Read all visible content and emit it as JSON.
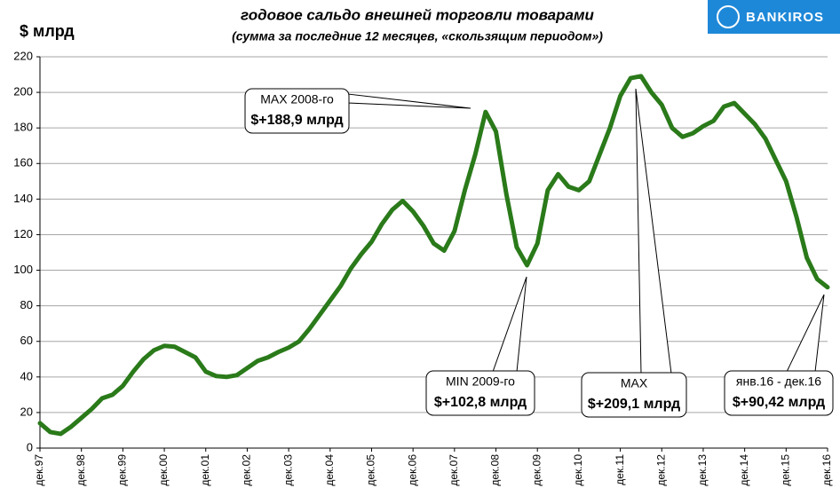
{
  "logo": "BANKIROS",
  "chart_data": {
    "type": "line",
    "title": "годовое сальдо внешней  торговли товарами",
    "subtitle": "(сумма за последние 12 месяцев, «скользящим периодом»)",
    "y_label": "$ млрд",
    "categories": [
      "дек.97",
      null,
      null,
      null,
      "дек.98",
      null,
      null,
      null,
      "дек.99",
      null,
      null,
      null,
      "дек.00",
      null,
      null,
      null,
      "дек.01",
      null,
      null,
      null,
      "дек.02",
      null,
      null,
      null,
      "дек.03",
      null,
      null,
      null,
      "дек.04",
      null,
      null,
      null,
      "дек.05",
      null,
      null,
      null,
      "дек.06",
      null,
      null,
      null,
      "дек.07",
      null,
      null,
      null,
      "дек.08",
      null,
      null,
      null,
      "дек.09",
      null,
      null,
      null,
      "дек.10",
      null,
      null,
      null,
      "дек.11",
      null,
      null,
      null,
      "дек.12",
      null,
      null,
      null,
      "дек.13",
      null,
      null,
      null,
      "дек.14",
      null,
      null,
      null,
      "дек.15",
      null,
      null,
      null,
      "дек.16"
    ],
    "series": [
      {
        "name": "сальдо",
        "color": "#2a7a1a",
        "values": [
          14,
          9,
          8,
          12,
          17,
          22,
          28,
          30,
          35,
          43,
          50,
          55,
          57.5,
          57,
          54,
          51,
          43,
          40.5,
          40,
          41,
          45,
          49,
          51,
          54,
          56.5,
          60,
          67,
          75,
          83,
          91,
          101,
          109,
          116,
          126,
          134,
          139,
          133,
          125,
          115,
          111,
          122,
          145,
          165,
          189,
          178,
          143,
          113,
          102.8,
          115,
          145,
          154,
          147,
          145,
          150,
          165,
          180,
          198,
          208,
          209.1,
          200,
          193,
          180,
          175,
          177,
          181,
          184,
          192,
          194,
          188,
          182,
          174,
          162,
          150,
          130,
          107,
          95,
          90.42
        ]
      }
    ],
    "ylim": [
      0,
      220
    ],
    "yticks": [
      0,
      20,
      40,
      60,
      80,
      100,
      120,
      140,
      160,
      180,
      200,
      220
    ],
    "grid": true,
    "annotations": [
      {
        "lines": [
          "MAX 2008-го",
          "$+188,9 млрд"
        ]
      },
      {
        "lines": [
          "MIN 2009-го",
          "$+102,8 млрд"
        ]
      },
      {
        "lines": [
          "MAX",
          "$+209,1 млрд"
        ]
      },
      {
        "lines": [
          "янв.16 - дек.16",
          "$+90,42 млрд"
        ]
      }
    ]
  }
}
